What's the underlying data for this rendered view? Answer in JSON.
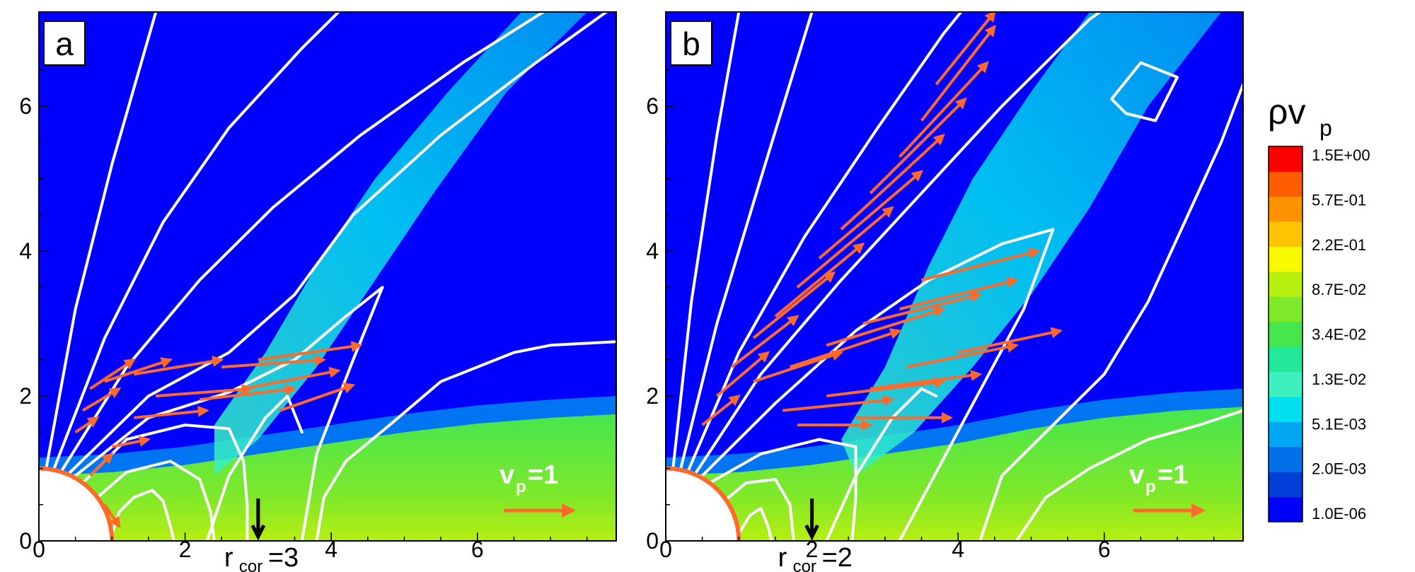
{
  "chart_data": [
    {
      "type": "heatmap",
      "panel_label": "a",
      "xlim": [
        0,
        7.9
      ],
      "ylim": [
        0,
        7.3
      ],
      "x_ticks": [
        "0",
        "2",
        "4",
        "6"
      ],
      "y_ticks": [
        "0",
        "2",
        "4",
        "6"
      ],
      "corotation_label": {
        "base": "r",
        "sub": "cor",
        "value": "=3",
        "x": 3.0
      },
      "velocity_key": {
        "base": "v",
        "sub": "p",
        "value": "=1"
      },
      "star_radius": 1.0,
      "disk_top": [
        [
          0,
          0.9
        ],
        [
          1,
          0.95
        ],
        [
          2,
          1.05
        ],
        [
          3,
          1.2
        ],
        [
          4,
          1.35
        ],
        [
          5,
          1.5
        ],
        [
          6,
          1.62
        ],
        [
          7,
          1.7
        ],
        [
          7.9,
          1.75
        ]
      ],
      "streamlines": [
        [
          [
            1.0,
            0.1
          ],
          [
            1.1,
            0.4
          ],
          [
            1.3,
            0.6
          ],
          [
            1.55,
            0.7
          ],
          [
            1.7,
            0.55
          ],
          [
            1.8,
            0.2
          ],
          [
            1.85,
            0
          ]
        ],
        [
          [
            0.8,
            0.6
          ],
          [
            1.2,
            0.95
          ],
          [
            1.8,
            1.1
          ],
          [
            2.2,
            0.85
          ],
          [
            2.35,
            0.4
          ],
          [
            2.4,
            0
          ]
        ],
        [
          [
            0.6,
            0.8
          ],
          [
            1.2,
            1.4
          ],
          [
            2.0,
            1.6
          ],
          [
            2.6,
            1.55
          ],
          [
            2.8,
            1.1
          ],
          [
            2.85,
            0.5
          ],
          [
            2.85,
            0
          ]
        ],
        [
          [
            0.5,
            0.9
          ],
          [
            1.5,
            1.7
          ],
          [
            2.6,
            2.05
          ],
          [
            3.5,
            2.5
          ],
          [
            4.2,
            3.1
          ],
          [
            4.7,
            3.5
          ],
          [
            4.3,
            2.5
          ],
          [
            3.8,
            1.2
          ],
          [
            3.6,
            0
          ]
        ],
        [
          [
            0.4,
            0.92
          ],
          [
            1.5,
            2.0
          ],
          [
            2.6,
            2.6
          ],
          [
            3.5,
            3.4
          ],
          [
            4.3,
            4.5
          ],
          [
            5.5,
            5.6
          ],
          [
            6.8,
            6.6
          ],
          [
            7.9,
            7.4
          ]
        ],
        [
          [
            0.3,
            0.95
          ],
          [
            1.2,
            2.4
          ],
          [
            2.2,
            3.6
          ],
          [
            3.2,
            4.6
          ],
          [
            4.4,
            5.6
          ],
          [
            5.8,
            6.6
          ],
          [
            6.9,
            7.3
          ]
        ],
        [
          [
            0.2,
            0.98
          ],
          [
            0.9,
            2.8
          ],
          [
            1.7,
            4.4
          ],
          [
            2.6,
            5.7
          ],
          [
            3.6,
            6.8
          ],
          [
            4.1,
            7.3
          ]
        ],
        [
          [
            0.1,
            1.0
          ],
          [
            0.5,
            3.2
          ],
          [
            1.0,
            5.2
          ],
          [
            1.6,
            7.3
          ]
        ],
        [
          [
            2.3,
            0
          ],
          [
            2.6,
            0.9
          ],
          [
            3.1,
            1.7
          ],
          [
            3.4,
            2.0
          ],
          [
            3.6,
            1.5
          ]
        ],
        [
          [
            3.8,
            0
          ],
          [
            3.9,
            0.6
          ],
          [
            4.2,
            1.1
          ],
          [
            4.8,
            1.6
          ],
          [
            5.5,
            2.2
          ],
          [
            6.0,
            2.4
          ],
          [
            6.5,
            2.6
          ],
          [
            7.0,
            2.7
          ],
          [
            7.9,
            2.75
          ]
        ]
      ],
      "arrows": [
        [
          0.5,
          1.5,
          0.3,
          0.2
        ],
        [
          0.6,
          1.8,
          0.5,
          0.3
        ],
        [
          0.7,
          2.1,
          0.6,
          0.4
        ],
        [
          0.9,
          2.2,
          0.9,
          0.3
        ],
        [
          1.3,
          2.3,
          1.2,
          0.2
        ],
        [
          1.6,
          2.0,
          1.3,
          0.1
        ],
        [
          1.3,
          1.7,
          1.0,
          0.1
        ],
        [
          2.2,
          1.95,
          1.3,
          0.15
        ],
        [
          2.5,
          2.4,
          1.4,
          0.1
        ],
        [
          3.0,
          2.5,
          1.4,
          0.2
        ],
        [
          2.8,
          2.1,
          1.3,
          0.25
        ],
        [
          3.3,
          1.8,
          1.0,
          0.35
        ],
        [
          0.7,
          0.9,
          0.3,
          0.3
        ],
        [
          0.9,
          0.5,
          0.2,
          -0.3
        ],
        [
          1.0,
          1.3,
          0.5,
          0.1
        ]
      ]
    },
    {
      "type": "heatmap",
      "panel_label": "b",
      "xlim": [
        0,
        7.9
      ],
      "ylim": [
        0,
        7.3
      ],
      "x_ticks": [
        "0",
        "2",
        "4",
        "6"
      ],
      "y_ticks": [
        "0",
        "2",
        "4",
        "6"
      ],
      "corotation_label": {
        "base": "r",
        "sub": "cor",
        "value": "=2",
        "x": 2.0
      },
      "velocity_key": {
        "base": "v",
        "sub": "p",
        "value": "=1"
      },
      "star_radius": 1.0,
      "disk_top": [
        [
          0,
          0.9
        ],
        [
          1,
          0.95
        ],
        [
          2,
          1.05
        ],
        [
          3,
          1.2
        ],
        [
          4,
          1.35
        ],
        [
          5,
          1.55
        ],
        [
          6,
          1.7
        ],
        [
          7,
          1.8
        ],
        [
          7.9,
          1.85
        ]
      ],
      "streamlines": [
        [
          [
            1.0,
            0.1
          ],
          [
            1.15,
            0.35
          ],
          [
            1.3,
            0.45
          ],
          [
            1.4,
            0.2
          ],
          [
            1.45,
            0
          ]
        ],
        [
          [
            0.8,
            0.55
          ],
          [
            1.1,
            0.8
          ],
          [
            1.5,
            0.85
          ],
          [
            1.7,
            0.5
          ],
          [
            1.75,
            0
          ]
        ],
        [
          [
            0.6,
            0.8
          ],
          [
            1.3,
            1.2
          ],
          [
            2.1,
            1.4
          ],
          [
            2.6,
            1.3
          ],
          [
            2.6,
            0.6
          ],
          [
            2.55,
            0
          ]
        ],
        [
          [
            2.2,
            0
          ],
          [
            2.6,
            0.9
          ],
          [
            3.1,
            1.7
          ],
          [
            3.5,
            2.1
          ],
          [
            3.7,
            2.0
          ]
        ],
        [
          [
            0.5,
            0.9
          ],
          [
            1.5,
            1.9
          ],
          [
            2.6,
            2.9
          ],
          [
            3.6,
            3.6
          ],
          [
            4.6,
            4.1
          ],
          [
            5.3,
            4.3
          ],
          [
            4.9,
            3.2
          ],
          [
            4.1,
            1.7
          ],
          [
            3.2,
            0
          ]
        ],
        [
          [
            0.4,
            0.92
          ],
          [
            1.3,
            2.3
          ],
          [
            2.4,
            3.6
          ],
          [
            3.5,
            4.8
          ],
          [
            4.6,
            6.0
          ],
          [
            5.8,
            7.2
          ],
          [
            6.5,
            7.7
          ],
          [
            7.9,
            8.4
          ]
        ],
        [
          [
            0.3,
            0.95
          ],
          [
            1.0,
            2.6
          ],
          [
            1.9,
            4.2
          ],
          [
            2.9,
            5.7
          ],
          [
            3.8,
            7.0
          ],
          [
            4.2,
            7.5
          ]
        ],
        [
          [
            0.2,
            0.98
          ],
          [
            0.7,
            3.0
          ],
          [
            1.3,
            5.0
          ],
          [
            2.0,
            7.3
          ]
        ],
        [
          [
            0.1,
            1.0
          ],
          [
            0.35,
            3.3
          ],
          [
            0.7,
            5.6
          ],
          [
            1.0,
            7.3
          ]
        ],
        [
          [
            4.3,
            0
          ],
          [
            4.6,
            0.9
          ],
          [
            5.2,
            1.5
          ],
          [
            6.0,
            2.3
          ],
          [
            6.6,
            3.3
          ],
          [
            7.1,
            4.4
          ],
          [
            7.6,
            5.5
          ],
          [
            7.9,
            6.3
          ]
        ],
        [
          [
            6.1,
            6.1
          ],
          [
            6.5,
            6.6
          ],
          [
            7.0,
            6.4
          ],
          [
            6.7,
            5.8
          ],
          [
            6.3,
            5.9
          ],
          [
            6.1,
            6.1
          ]
        ],
        [
          [
            4.8,
            0
          ],
          [
            5.2,
            0.6
          ],
          [
            5.8,
            1.0
          ],
          [
            6.6,
            1.4
          ],
          [
            7.3,
            1.6
          ],
          [
            7.9,
            1.8
          ]
        ]
      ],
      "arrows": [
        [
          0.5,
          1.6,
          0.5,
          0.4
        ],
        [
          0.7,
          2.0,
          0.7,
          0.6
        ],
        [
          0.9,
          2.4,
          0.9,
          0.7
        ],
        [
          1.2,
          2.8,
          1.1,
          0.9
        ],
        [
          1.5,
          3.1,
          1.2,
          1.0
        ],
        [
          1.8,
          3.5,
          1.3,
          1.1
        ],
        [
          2.1,
          3.9,
          1.4,
          1.2
        ],
        [
          2.4,
          4.3,
          1.4,
          1.3
        ],
        [
          2.8,
          4.8,
          1.3,
          1.3
        ],
        [
          3.2,
          5.3,
          1.2,
          1.3
        ],
        [
          3.5,
          5.8,
          1.0,
          1.3
        ],
        [
          3.7,
          6.3,
          0.8,
          1.0
        ],
        [
          1.2,
          2.2,
          1.2,
          0.4
        ],
        [
          1.7,
          2.4,
          1.5,
          0.5
        ],
        [
          2.2,
          2.7,
          1.6,
          0.5
        ],
        [
          2.7,
          3.0,
          1.6,
          0.4
        ],
        [
          3.2,
          3.2,
          1.6,
          0.4
        ],
        [
          1.6,
          1.8,
          1.5,
          0.15
        ],
        [
          2.2,
          2.0,
          1.6,
          0.2
        ],
        [
          2.8,
          2.1,
          1.5,
          0.2
        ],
        [
          3.3,
          2.4,
          1.5,
          0.3
        ],
        [
          1.8,
          1.6,
          1.0,
          0.0
        ],
        [
          2.6,
          1.7,
          1.3,
          0.0
        ],
        [
          3.5,
          3.6,
          1.6,
          0.4
        ],
        [
          4.0,
          2.6,
          1.4,
          0.3
        ]
      ]
    }
  ],
  "colorbar": {
    "title_main": "ρv",
    "title_sub": "p",
    "colors": [
      "#0000ff",
      "#003ed8",
      "#0070e8",
      "#00a6f0",
      "#00e0f0",
      "#3cf0c0",
      "#22e89a",
      "#46e64e",
      "#7ee82a",
      "#b6ee10",
      "#f8f800",
      "#ffc400",
      "#ff9200",
      "#ff5c00",
      "#ff0000"
    ],
    "labels": [
      "1.0E-06",
      "2.0E-03",
      "5.1E-03",
      "1.3E-02",
      "3.4E-02",
      "8.7E-02",
      "2.2E-01",
      "5.7E-01",
      "1.5E+00"
    ]
  }
}
